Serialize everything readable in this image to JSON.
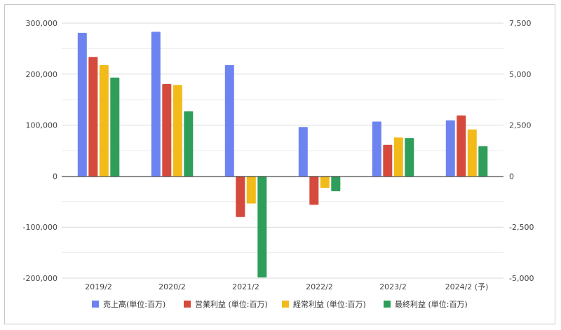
{
  "chart_data": {
    "type": "bar",
    "categories": [
      "2019/2",
      "2020/2",
      "2021/2",
      "2022/2",
      "2023/2",
      "2024/2 (予)"
    ],
    "series": [
      {
        "name": "売上高(単位:百万)",
        "axis": "left",
        "color": "#6d84f0",
        "values": [
          281000,
          283000,
          218000,
          97000,
          107500,
          110000
        ]
      },
      {
        "name": "営業利益 (単位:百万)",
        "axis": "right",
        "color": "#d54a3c",
        "values": [
          5850,
          4520,
          -1980,
          -1380,
          1550,
          2990
        ]
      },
      {
        "name": "経常利益 (単位:百万)",
        "axis": "right",
        "color": "#f2bb1a",
        "values": [
          5450,
          4480,
          -1320,
          -550,
          1910,
          2300
        ]
      },
      {
        "name": "最終利益 (単位:百万)",
        "axis": "right",
        "color": "#2f9e5a",
        "values": [
          4840,
          3190,
          -4930,
          -720,
          1880,
          1490
        ]
      }
    ],
    "y_left": {
      "lim": [
        -200000,
        300000
      ],
      "ticks": [
        "300,000",
        "200,000",
        "100,000",
        "0",
        "-100,000",
        "-200,000"
      ]
    },
    "y_right": {
      "lim": [
        -5000,
        7500
      ],
      "ticks": [
        "7,500",
        "5,000",
        "2,500",
        "0",
        "-2,500",
        "-5,000"
      ]
    },
    "grid": true,
    "legend": "bottom"
  }
}
